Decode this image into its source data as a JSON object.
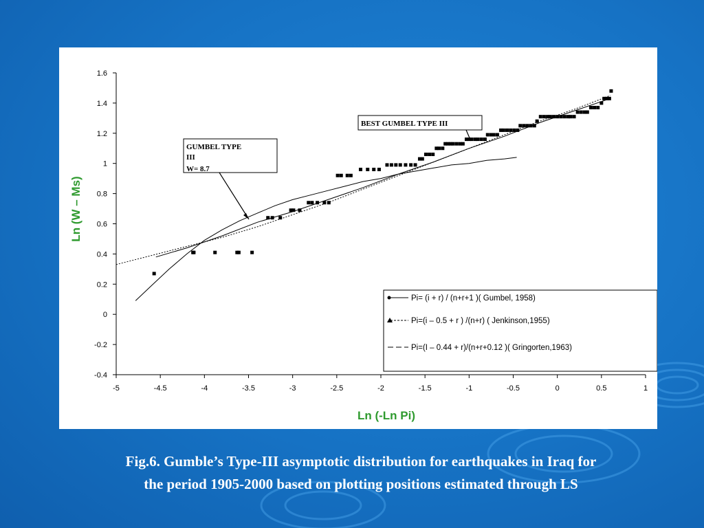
{
  "slide": {
    "caption_line1": "Fig.6. Gumble’s Type-III asymptotic distribution for earthquakes in Iraq for",
    "caption_line2": "the period 1905-2000 based on plotting positions estimated through LS",
    "background_color": "#1672c4",
    "caption_color": "#ffffff"
  },
  "chart_data": {
    "type": "scatter",
    "xlabel": "Ln (-Ln Pi)",
    "ylabel": "Ln (W – Ms)",
    "axis_label_color": "#2e9a2e",
    "xlim": [
      -5,
      1
    ],
    "ylim": [
      -0.4,
      1.6
    ],
    "x_ticks": [
      "-5",
      "-4.5",
      "-4",
      "-3.5",
      "-3",
      "-2.5",
      "-2",
      "-1.5",
      "-1",
      "-0.5",
      "0",
      "0.5",
      "1"
    ],
    "y_ticks": [
      "1.6",
      "1.4",
      "1.2",
      "1",
      "0.8",
      "0.6",
      "0.4",
      "0.2",
      "0",
      "-0.2",
      "-0.4"
    ],
    "grid": false,
    "legend_position": "bottom-right",
    "annotations": {
      "gumbel_type": {
        "line1": "GUMBEL TYPE",
        "line2": "III",
        "line3": "W= 8.7"
      },
      "best_fit": "BEST GUMBEL TYPE  III"
    },
    "series": [
      {
        "name": "Pi= (i + r) / (n+r+1 )( Gumbel, 1958)",
        "marker": "dot",
        "values": []
      },
      {
        "name": "Pi=(i – 0.5 + r ) /(n+r) ( Jenkinson,1955)",
        "marker": "triangle",
        "values": []
      },
      {
        "name": "Pi=(I – 0.44 + r)/(n+r+0.12 )( Gringorten,1963)",
        "marker": "none",
        "values": []
      }
    ],
    "observed_points": [
      [
        -4.57,
        0.27
      ],
      [
        -4.13,
        0.41
      ],
      [
        -4.12,
        0.41
      ],
      [
        -3.88,
        0.41
      ],
      [
        -3.63,
        0.41
      ],
      [
        -3.61,
        0.41
      ],
      [
        -3.46,
        0.41
      ],
      [
        -3.28,
        0.64
      ],
      [
        -3.23,
        0.64
      ],
      [
        -3.14,
        0.64
      ],
      [
        -3.02,
        0.69
      ],
      [
        -2.99,
        0.69
      ],
      [
        -2.92,
        0.69
      ],
      [
        -2.82,
        0.74
      ],
      [
        -2.78,
        0.74
      ],
      [
        -2.72,
        0.74
      ],
      [
        -2.64,
        0.74
      ],
      [
        -2.59,
        0.74
      ],
      [
        -2.49,
        0.92
      ],
      [
        -2.45,
        0.92
      ],
      [
        -2.38,
        0.92
      ],
      [
        -2.34,
        0.92
      ],
      [
        -2.23,
        0.96
      ],
      [
        -2.15,
        0.96
      ],
      [
        -2.08,
        0.96
      ],
      [
        -2.02,
        0.96
      ],
      [
        -1.93,
        0.99
      ],
      [
        -1.88,
        0.99
      ],
      [
        -1.83,
        0.99
      ],
      [
        -1.78,
        0.99
      ],
      [
        -1.72,
        0.99
      ],
      [
        -1.66,
        0.99
      ],
      [
        -1.61,
        0.99
      ],
      [
        -1.56,
        1.03
      ],
      [
        -1.53,
        1.03
      ],
      [
        -1.49,
        1.06
      ],
      [
        -1.45,
        1.06
      ],
      [
        -1.41,
        1.06
      ],
      [
        -1.37,
        1.1
      ],
      [
        -1.34,
        1.1
      ],
      [
        -1.3,
        1.1
      ],
      [
        -1.27,
        1.13
      ],
      [
        -1.24,
        1.13
      ],
      [
        -1.21,
        1.13
      ],
      [
        -1.18,
        1.13
      ],
      [
        -1.14,
        1.13
      ],
      [
        -1.1,
        1.13
      ],
      [
        -1.07,
        1.13
      ],
      [
        -1.03,
        1.16
      ],
      [
        -1.0,
        1.16
      ],
      [
        -0.97,
        1.16
      ],
      [
        -0.93,
        1.16
      ],
      [
        -0.9,
        1.16
      ],
      [
        -0.86,
        1.16
      ],
      [
        -0.82,
        1.16
      ],
      [
        -0.79,
        1.19
      ],
      [
        -0.75,
        1.19
      ],
      [
        -0.72,
        1.19
      ],
      [
        -0.68,
        1.19
      ],
      [
        -0.64,
        1.22
      ],
      [
        -0.61,
        1.22
      ],
      [
        -0.57,
        1.22
      ],
      [
        -0.53,
        1.22
      ],
      [
        -0.49,
        1.22
      ],
      [
        -0.45,
        1.22
      ],
      [
        -0.42,
        1.25
      ],
      [
        -0.38,
        1.25
      ],
      [
        -0.34,
        1.25
      ],
      [
        -0.3,
        1.25
      ],
      [
        -0.26,
        1.25
      ],
      [
        -0.23,
        1.28
      ],
      [
        -0.19,
        1.31
      ],
      [
        -0.15,
        1.31
      ],
      [
        -0.11,
        1.31
      ],
      [
        -0.08,
        1.31
      ],
      [
        -0.04,
        1.31
      ],
      [
        0.0,
        1.31
      ],
      [
        0.04,
        1.31
      ],
      [
        0.08,
        1.31
      ],
      [
        0.12,
        1.31
      ],
      [
        0.15,
        1.31
      ],
      [
        0.19,
        1.31
      ],
      [
        0.23,
        1.34
      ],
      [
        0.27,
        1.34
      ],
      [
        0.31,
        1.34
      ],
      [
        0.34,
        1.34
      ],
      [
        0.38,
        1.37
      ],
      [
        0.42,
        1.37
      ],
      [
        0.46,
        1.37
      ],
      [
        0.5,
        1.4
      ],
      [
        0.53,
        1.43
      ],
      [
        0.56,
        1.43
      ],
      [
        0.59,
        1.43
      ],
      [
        0.61,
        1.48
      ]
    ],
    "fitted_curves": [
      {
        "style": "solid",
        "x": [
          -4.78,
          -4.6,
          -4.4,
          -4.2,
          -4.0,
          -3.8,
          -3.6,
          -3.4,
          -3.2,
          -3.0,
          -2.8,
          -2.6,
          -2.4,
          -2.2,
          -2.0,
          -1.8,
          -1.6,
          -1.4,
          -1.2,
          -1.0,
          -0.8,
          -0.6,
          -0.46
        ],
        "y": [
          0.09,
          0.19,
          0.3,
          0.4,
          0.49,
          0.56,
          0.62,
          0.67,
          0.72,
          0.76,
          0.79,
          0.82,
          0.85,
          0.88,
          0.9,
          0.93,
          0.95,
          0.97,
          0.99,
          1.0,
          1.02,
          1.03,
          1.04
        ]
      },
      {
        "style": "solid",
        "x": [
          -4.55,
          -4.2,
          -3.8,
          -3.4,
          -3.0,
          -2.6,
          -2.2,
          -1.8,
          -1.4,
          -1.0,
          -0.6,
          -0.2,
          0.2,
          0.6
        ],
        "y": [
          0.38,
          0.44,
          0.52,
          0.61,
          0.68,
          0.76,
          0.84,
          0.93,
          1.01,
          1.1,
          1.18,
          1.27,
          1.35,
          1.43
        ]
      },
      {
        "style": "dashed",
        "x": [
          -5.0,
          -4.6,
          -4.2,
          -3.8,
          -3.4,
          -3.0,
          -2.6,
          -2.2,
          -1.8,
          -1.4,
          -1.0,
          -0.6,
          -0.2,
          0.2,
          0.6
        ],
        "y": [
          0.33,
          0.39,
          0.45,
          0.51,
          0.58,
          0.66,
          0.74,
          0.83,
          0.92,
          1.01,
          1.1,
          1.19,
          1.28,
          1.36,
          1.45
        ]
      }
    ]
  }
}
